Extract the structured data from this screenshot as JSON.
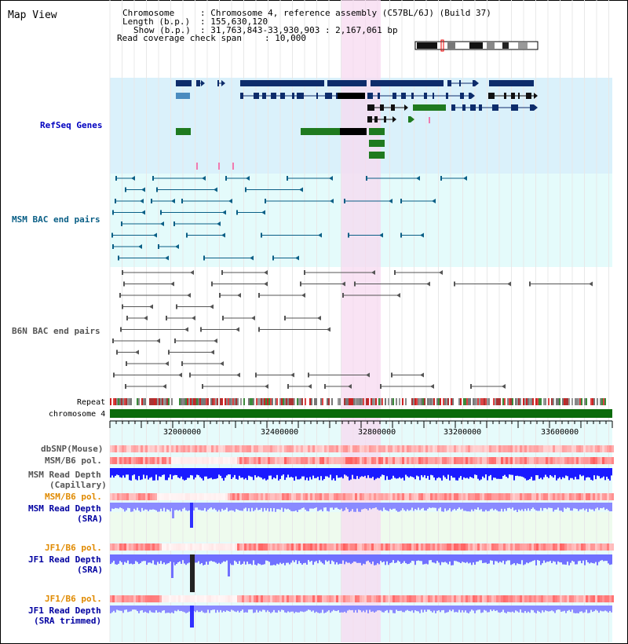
{
  "view": {
    "title": "Map View"
  },
  "info": {
    "chromosome_key": "Chromosome",
    "chromosome_val": ": Chromosome 4, reference assembly (C57BL/6J) (Build 37)",
    "length_key": "Length (b.p.)",
    "length_val": ": 155,630,120",
    "show_key": "Show (b.p.)",
    "show_val": ": 31,763,843-33,930,903 : 2,167,061 bp",
    "coverage_key": "Read coverage check span",
    "coverage_val": ": 10,000"
  },
  "tracks": {
    "refseq": "RefSeq Genes",
    "msm_bac": "MSM BAC end pairs",
    "b6n_bac": "B6N BAC end pairs",
    "repeat": "Repeat",
    "chromosome": "chromosome 4",
    "dbsnp": "dbSNP(Mouse)",
    "msm_b6_pol": "MSM/B6 pol.",
    "msm_depth_cap_1": "MSM Read Depth",
    "msm_depth_cap_2": "(Capillary)",
    "msm_b6_pol2": "MSM/B6 pol.",
    "msm_depth_sra_1": "MSM Read Depth",
    "msm_depth_sra_2": "(SRA)",
    "jf1_b6_pol": "JF1/B6 pol.",
    "jf1_depth_sra_1": "JF1 Read Depth",
    "jf1_depth_sra_2": "(SRA)",
    "jf1_b6_pol2": "JF1/B6 pol.",
    "jf1_depth_trim_1": "JF1 Read Depth",
    "jf1_depth_trim_2": "(SRA trimmed)"
  },
  "ruler": {
    "ticks": [
      "32000000",
      "32400000",
      "32800000",
      "33200000",
      "33600000"
    ]
  },
  "colors": {
    "refseq_bg": "#daf1fb",
    "msm_bg": "#e4fbfb",
    "b6n_bg": "#ffffff",
    "highlight": "#f7d9f0",
    "refseq_label": "#0000c0",
    "msm_label": "#0a5f86",
    "b6n_label": "#555555",
    "pol_label": "#e08a00",
    "depth_label": "#0000a0",
    "gene_dark": "#0d2c6b",
    "gene_mid": "#4a8bbf",
    "gene_green": "#1f7a1f",
    "chromosome": "#0b6b0b"
  },
  "icons": {
    "ideogram": "chromosome-ideogram-icon"
  }
}
